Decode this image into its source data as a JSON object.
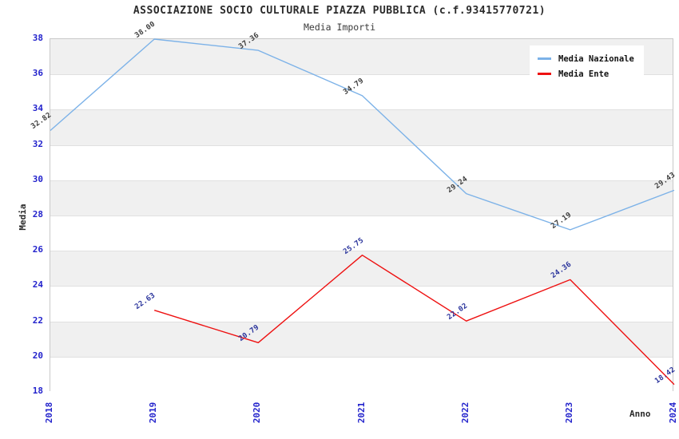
{
  "header": {
    "title": "ASSOCIAZIONE SOCIO CULTURALE PIAZZA PUBBLICA (c.f.93415770721)",
    "subtitle": "Media Importi"
  },
  "legend": {
    "items": [
      {
        "label": "Media Nazionale",
        "color": "#7cb2e8"
      },
      {
        "label": "Media Ente",
        "color": "#ee1111"
      }
    ]
  },
  "axes": {
    "y_label": "Media",
    "x_label": "Anno",
    "tick_color": "#2323cc"
  },
  "chart_data": {
    "type": "line",
    "title": "ASSOCIAZIONE SOCIO CULTURALE PIAZZA PUBBLICA (c.f.93415770721)",
    "subtitle": "Media Importi",
    "xlabel": "Anno",
    "ylabel": "Media",
    "x": [
      2018,
      2019,
      2020,
      2021,
      2022,
      2023,
      2024
    ],
    "ylim": [
      18,
      38
    ],
    "y_tick_step": 2,
    "grid": true,
    "band_colors": [
      "#f0f0f0",
      "#ffffff"
    ],
    "legend_position": "top-right",
    "series": [
      {
        "name": "Media Nazionale",
        "color": "#7cb2e8",
        "label_color": "#3c3c3c",
        "values": [
          32.82,
          38.0,
          37.36,
          34.79,
          29.24,
          27.19,
          29.43
        ]
      },
      {
        "name": "Media Ente",
        "color": "#ee1111",
        "label_color": "#28329b",
        "values": [
          null,
          22.63,
          20.79,
          25.75,
          22.02,
          24.36,
          18.42
        ]
      }
    ]
  }
}
